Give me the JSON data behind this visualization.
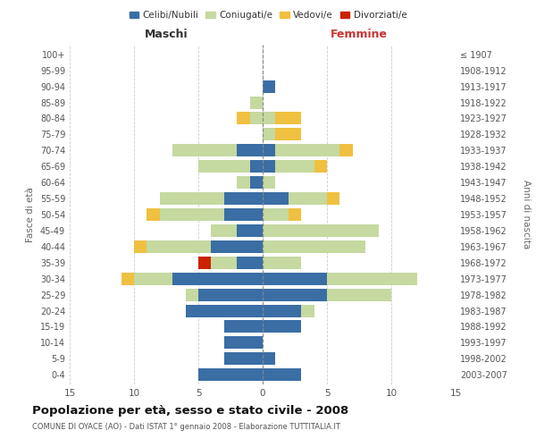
{
  "age_groups": [
    "0-4",
    "5-9",
    "10-14",
    "15-19",
    "20-24",
    "25-29",
    "30-34",
    "35-39",
    "40-44",
    "45-49",
    "50-54",
    "55-59",
    "60-64",
    "65-69",
    "70-74",
    "75-79",
    "80-84",
    "85-89",
    "90-94",
    "95-99",
    "100+"
  ],
  "birth_years": [
    "2003-2007",
    "1998-2002",
    "1993-1997",
    "1988-1992",
    "1983-1987",
    "1978-1982",
    "1973-1977",
    "1968-1972",
    "1963-1967",
    "1958-1962",
    "1953-1957",
    "1948-1952",
    "1943-1947",
    "1938-1942",
    "1933-1937",
    "1928-1932",
    "1923-1927",
    "1918-1922",
    "1913-1917",
    "1908-1912",
    "≤ 1907"
  ],
  "maschi": {
    "celibi": [
      5,
      3,
      3,
      3,
      6,
      5,
      7,
      2,
      4,
      2,
      3,
      3,
      1,
      1,
      2,
      0,
      0,
      0,
      0,
      0,
      0
    ],
    "coniugati": [
      0,
      0,
      0,
      0,
      0,
      1,
      3,
      2,
      5,
      2,
      5,
      5,
      1,
      4,
      5,
      0,
      1,
      1,
      0,
      0,
      0
    ],
    "vedovi": [
      0,
      0,
      0,
      0,
      0,
      0,
      1,
      0,
      1,
      0,
      1,
      0,
      0,
      0,
      0,
      0,
      1,
      0,
      0,
      0,
      0
    ],
    "divorziati": [
      0,
      0,
      0,
      0,
      0,
      0,
      0,
      1,
      0,
      0,
      0,
      0,
      0,
      0,
      0,
      0,
      0,
      0,
      0,
      0,
      0
    ]
  },
  "femmine": {
    "nubili": [
      3,
      1,
      0,
      3,
      3,
      5,
      5,
      0,
      0,
      0,
      0,
      2,
      0,
      1,
      1,
      0,
      0,
      0,
      1,
      0,
      0
    ],
    "coniugate": [
      0,
      0,
      0,
      0,
      1,
      5,
      7,
      3,
      8,
      9,
      2,
      3,
      1,
      3,
      5,
      1,
      1,
      0,
      0,
      0,
      0
    ],
    "vedove": [
      0,
      0,
      0,
      0,
      0,
      0,
      0,
      0,
      0,
      0,
      1,
      1,
      0,
      1,
      1,
      2,
      2,
      0,
      0,
      0,
      0
    ],
    "divorziate": [
      0,
      0,
      0,
      0,
      0,
      0,
      0,
      0,
      0,
      0,
      0,
      0,
      0,
      0,
      0,
      0,
      0,
      0,
      0,
      0,
      0
    ]
  },
  "color_celibi": "#3a6ea5",
  "color_coniugati": "#c5d9a0",
  "color_vedovi": "#f0c040",
  "color_divorziati": "#cc2200",
  "title_main": "Popolazione per età, sesso e stato civile - 2008",
  "subtitle": "COMUNE DI OYACE (AO) - Dati ISTAT 1° gennaio 2008 - Elaborazione TUTTITALIA.IT",
  "xlabel_left": "Maschi",
  "xlabel_right": "Femmine",
  "ylabel_left": "Fasce di età",
  "ylabel_right": "Anni di nascita",
  "xlim": 15,
  "background": "#ffffff",
  "grid_color": "#cccccc"
}
